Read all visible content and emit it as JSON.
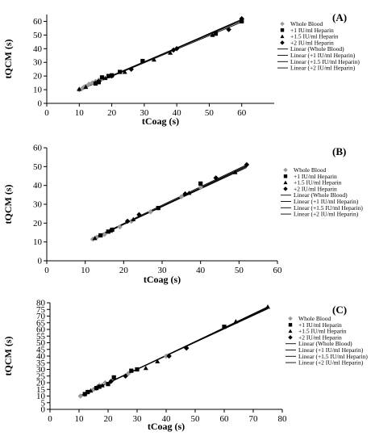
{
  "chart_data": [
    {
      "type": "scatter",
      "panel_label": "(A)",
      "xlabel": "tCoag (s)",
      "ylabel": "tQCM  (s)",
      "xlim": [
        0,
        70
      ],
      "ylim": [
        0,
        65
      ],
      "xticks": [
        0,
        10,
        20,
        30,
        40,
        50,
        60
      ],
      "yticks": [
        0,
        10,
        20,
        30,
        40,
        50,
        60
      ],
      "legend_position": "right",
      "series": [
        {
          "name": "Whole Blood",
          "marker": "diamond",
          "color": "#9a9a9a",
          "points": [
            [
              10,
              10
            ],
            [
              11,
              11
            ],
            [
              11.5,
              12
            ],
            [
              12,
              12.5
            ],
            [
              13,
              14
            ],
            [
              14,
              15
            ],
            [
              15,
              16
            ],
            [
              16,
              17
            ],
            [
              17,
              18
            ]
          ]
        },
        {
          "name": "+1 IU/ml Heparin",
          "marker": "square",
          "color": "#000000",
          "points": [
            [
              15,
              14.5
            ],
            [
              16,
              15.5
            ],
            [
              17,
              19
            ],
            [
              19,
              20
            ],
            [
              20,
              20.5
            ],
            [
              22.5,
              23
            ],
            [
              29.5,
              31
            ],
            [
              52,
              51
            ],
            [
              60,
              60
            ]
          ]
        },
        {
          "name": "+1.5 IU/ml Heparin",
          "marker": "triangle",
          "color": "#000000",
          "points": [
            [
              10,
              10.5
            ],
            [
              12,
              12
            ],
            [
              15,
              15
            ],
            [
              18,
              18.5
            ],
            [
              24,
              23
            ],
            [
              33,
              32
            ],
            [
              38,
              37
            ],
            [
              51,
              50
            ]
          ]
        },
        {
          "name": "+2 IU/ml Heparin",
          "marker": "diamond",
          "color": "#000000",
          "points": [
            [
              16,
              16
            ],
            [
              20,
              20
            ],
            [
              26,
              25
            ],
            [
              39,
              39
            ],
            [
              40,
              40
            ],
            [
              56,
              54
            ],
            [
              60,
              62
            ]
          ]
        }
      ],
      "fit_lines": [
        {
          "name": "Linear (Whole Blood)",
          "color": "#000000",
          "x": [
            9.5,
            60
          ],
          "y": [
            9.5,
            60.5
          ]
        },
        {
          "name": "Linear (+1 IU/ml Heparin)",
          "color": "#000000",
          "x": [
            9.5,
            60
          ],
          "y": [
            9.3,
            59.5
          ]
        },
        {
          "name": "Linear (+1.5 IU/ml Heparin)",
          "color": "#000000",
          "x": [
            9.5,
            60
          ],
          "y": [
            9.8,
            60.8
          ]
        },
        {
          "name": "Linear (+2 IU/ml Heparin)",
          "color": "#000000",
          "x": [
            9.5,
            60
          ],
          "y": [
            9.0,
            61.5
          ]
        }
      ]
    },
    {
      "type": "scatter",
      "panel_label": "(B)",
      "xlabel": "tCoag (s)",
      "ylabel": "tQCM  (s)",
      "xlim": [
        0,
        60
      ],
      "ylim": [
        0,
        60
      ],
      "xticks": [
        0,
        10,
        20,
        30,
        40,
        50,
        60
      ],
      "yticks": [
        0,
        10,
        20,
        30,
        40,
        50,
        60
      ],
      "legend_position": "right",
      "series": [
        {
          "name": "Whole Blood",
          "marker": "diamond",
          "color": "#9a9a9a",
          "points": [
            [
              12,
              11.5
            ],
            [
              13,
              12.5
            ],
            [
              15,
              14
            ],
            [
              17,
              16
            ],
            [
              19,
              18
            ],
            [
              22,
              21
            ],
            [
              27,
              26
            ],
            [
              35,
              34
            ],
            [
              40,
              39
            ]
          ]
        },
        {
          "name": "+1 IU/ml Heparin",
          "marker": "square",
          "color": "#000000",
          "points": [
            [
              14,
              13.5
            ],
            [
              16,
              15.5
            ],
            [
              17,
              16.5
            ],
            [
              29,
              28
            ],
            [
              40,
              41
            ]
          ]
        },
        {
          "name": "+1.5 IU/ml Heparin",
          "marker": "triangle",
          "color": "#000000",
          "points": [
            [
              12.5,
              12
            ],
            [
              16.5,
              16
            ],
            [
              22.5,
              22
            ],
            [
              37,
              36
            ],
            [
              49,
              47
            ]
          ]
        },
        {
          "name": "+2 IU/ml Heparin",
          "marker": "diamond",
          "color": "#000000",
          "points": [
            [
              21,
              21
            ],
            [
              24,
              24.5
            ],
            [
              36,
              35.5
            ],
            [
              44,
              44
            ],
            [
              52,
              51
            ]
          ]
        }
      ],
      "fit_lines": [
        {
          "name": "Linear (Whole Blood)",
          "color": "#000000",
          "x": [
            11.5,
            52
          ],
          "y": [
            11,
            50.5
          ]
        },
        {
          "name": "Linear (+1 IU/ml Heparin)",
          "color": "#000000",
          "x": [
            11.5,
            52
          ],
          "y": [
            11.3,
            50
          ]
        },
        {
          "name": "Linear (+1.5 IU/ml Heparin)",
          "color": "#000000",
          "x": [
            11.5,
            52
          ],
          "y": [
            11.2,
            49.5
          ]
        },
        {
          "name": "Linear (+2 IU/ml Heparin)",
          "color": "#000000",
          "x": [
            11.5,
            52
          ],
          "y": [
            11.5,
            51
          ]
        }
      ]
    },
    {
      "type": "scatter",
      "panel_label": "(C)",
      "xlabel": "tCoag (s)",
      "ylabel": "tQCM  (s)",
      "xlim": [
        0,
        80
      ],
      "ylim": [
        0,
        80
      ],
      "xticks": [
        0,
        10,
        20,
        30,
        40,
        50,
        60,
        70,
        80
      ],
      "yticks": [
        0,
        5,
        10,
        15,
        20,
        25,
        30,
        35,
        40,
        45,
        50,
        55,
        60,
        65,
        70,
        75,
        80
      ],
      "legend_position": "right",
      "series": [
        {
          "name": "Whole Blood",
          "marker": "diamond",
          "color": "#9a9a9a",
          "points": [
            [
              10.5,
              10
            ],
            [
              12,
              11
            ],
            [
              13,
              13
            ],
            [
              15,
              15
            ],
            [
              16,
              16
            ],
            [
              17,
              18
            ],
            [
              19,
              20
            ],
            [
              27,
              27
            ],
            [
              40,
              40
            ]
          ]
        },
        {
          "name": "+1 IU/ml Heparin",
          "marker": "square",
          "color": "#000000",
          "points": [
            [
              12,
              11.5
            ],
            [
              13,
              13
            ],
            [
              16,
              16
            ],
            [
              17,
              17
            ],
            [
              20,
              19
            ],
            [
              22,
              24
            ],
            [
              28,
              29
            ],
            [
              30,
              30
            ],
            [
              60,
              62
            ]
          ]
        },
        {
          "name": "+1.5 IU/ml Heparin",
          "marker": "triangle",
          "color": "#000000",
          "points": [
            [
              14,
              14
            ],
            [
              18,
              18
            ],
            [
              33,
              31
            ],
            [
              37,
              36
            ],
            [
              64,
              66
            ],
            [
              75,
              77
            ]
          ]
        },
        {
          "name": "+2 IU/ml Heparin",
          "marker": "diamond",
          "color": "#000000",
          "points": [
            [
              16,
              16
            ],
            [
              21,
              21
            ],
            [
              26,
              25
            ],
            [
              41,
              40
            ],
            [
              47,
              46
            ]
          ]
        }
      ],
      "fit_lines": [
        {
          "name": "Linear (Whole Blood)",
          "color": "#000000",
          "x": [
            10,
            75
          ],
          "y": [
            9.5,
            76
          ]
        },
        {
          "name": "Linear (+1 IU/ml Heparin)",
          "color": "#000000",
          "x": [
            10,
            75
          ],
          "y": [
            9.8,
            76.5
          ]
        },
        {
          "name": "Linear (+1.5 IU/ml Heparin)",
          "color": "#000000",
          "x": [
            10,
            75
          ],
          "y": [
            9.2,
            77
          ]
        },
        {
          "name": "Linear (+2 IU/ml Heparin)",
          "color": "#000000",
          "x": [
            10,
            75
          ],
          "y": [
            10,
            75.5
          ]
        }
      ]
    }
  ]
}
